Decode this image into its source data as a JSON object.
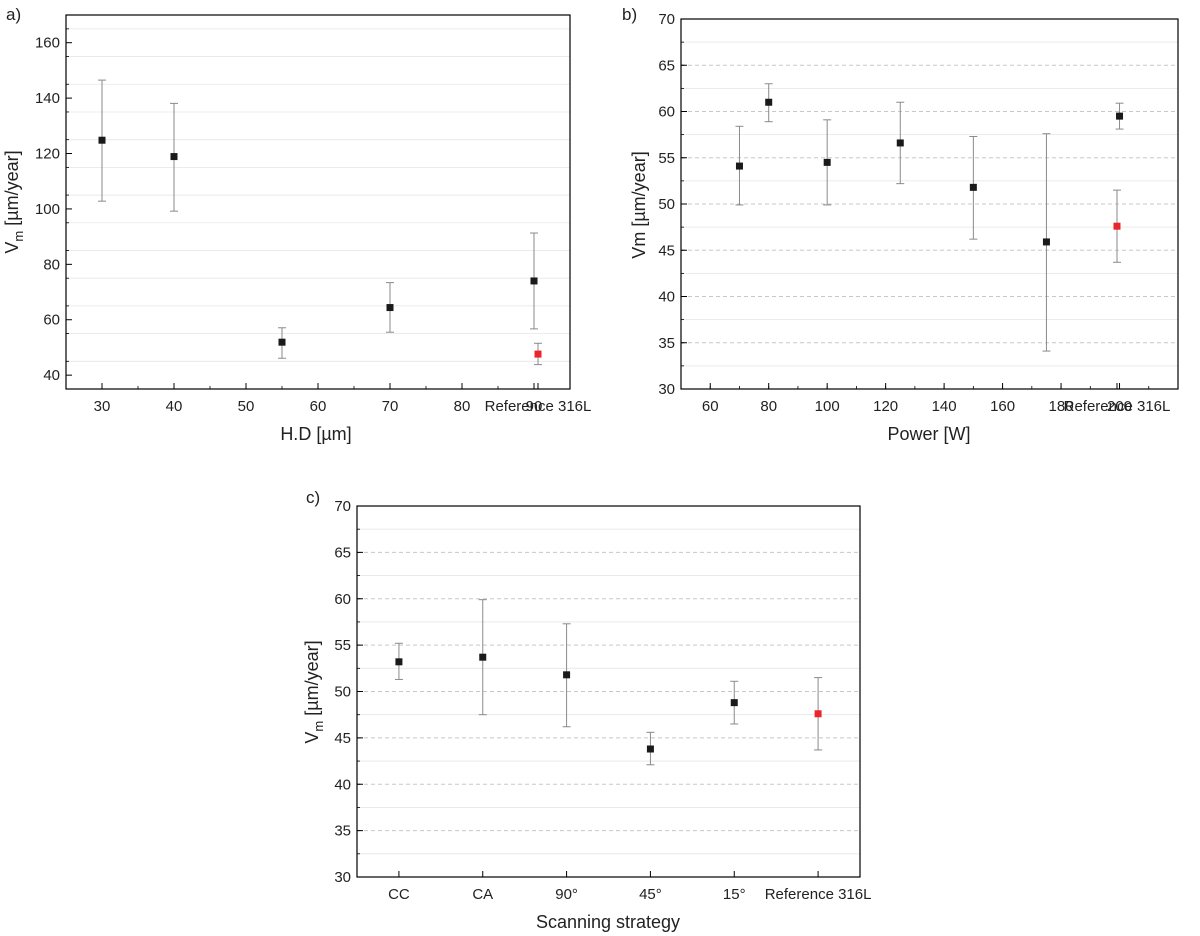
{
  "chart_data": [
    {
      "panel_label": "a)",
      "type": "scatter",
      "xlabel": "H.D [µm]",
      "ylabel_main": "V",
      "ylabel_sub": "m",
      "ylabel_rest": " [µm/year]",
      "xlim": [
        25,
        95
      ],
      "ylim": [
        35,
        170
      ],
      "xticks": [
        30,
        40,
        50,
        60,
        70,
        80,
        90
      ],
      "xtick_labels": [
        "30",
        "40",
        "50",
        "60",
        "70",
        "80",
        "90"
      ],
      "yticks": [
        40,
        60,
        80,
        100,
        120,
        140,
        160
      ],
      "ytick_labels": [
        "40",
        "60",
        "80",
        "100",
        "120",
        "140",
        "160"
      ],
      "grid": true,
      "extra_label": "Reference 316L",
      "points": [
        {
          "x": 30,
          "y": 124.8,
          "lo": 102.8,
          "hi": 146.5
        },
        {
          "x": 40,
          "y": 118.9,
          "lo": 99.2,
          "hi": 138.1
        },
        {
          "x": 55,
          "y": 51.9,
          "lo": 46.1,
          "hi": 57.1
        },
        {
          "x": 70,
          "y": 64.4,
          "lo": 55.5,
          "hi": 73.4
        },
        {
          "x": 90,
          "y": 74.0,
          "lo": 56.7,
          "hi": 91.3
        },
        {
          "x": "Reference 316L",
          "y": 47.6,
          "lo": 43.8,
          "hi": 51.5,
          "color": "#e8262c"
        }
      ]
    },
    {
      "panel_label": "b)",
      "type": "scatter",
      "xlabel": "Power [W]",
      "ylabel_main": "Vm [µm/year]",
      "xlim": [
        50,
        220
      ],
      "ylim": [
        30,
        70
      ],
      "xticks": [
        60,
        80,
        100,
        120,
        140,
        160,
        180,
        200
      ],
      "xtick_labels": [
        "60",
        "80",
        "100",
        "120",
        "140",
        "160",
        "180",
        "200"
      ],
      "yticks": [
        30,
        35,
        40,
        45,
        50,
        55,
        60,
        65,
        70
      ],
      "ytick_labels": [
        "30",
        "35",
        "40",
        "45",
        "50",
        "55",
        "60",
        "65",
        "70"
      ],
      "grid": true,
      "extra_label": "Reference 316L",
      "points": [
        {
          "x": 70,
          "y": 54.1,
          "lo": 49.9,
          "hi": 58.4
        },
        {
          "x": 80,
          "y": 61.0,
          "lo": 58.9,
          "hi": 63.0
        },
        {
          "x": 100,
          "y": 54.5,
          "lo": 49.9,
          "hi": 59.1
        },
        {
          "x": 125,
          "y": 56.6,
          "lo": 52.2,
          "hi": 61.0
        },
        {
          "x": 150,
          "y": 51.8,
          "lo": 46.2,
          "hi": 57.3
        },
        {
          "x": 175,
          "y": 45.9,
          "lo": 34.1,
          "hi": 57.6
        },
        {
          "x": 200,
          "y": 59.5,
          "lo": 58.1,
          "hi": 60.9
        },
        {
          "x": "Reference 316L",
          "y": 47.6,
          "lo": 43.7,
          "hi": 51.5,
          "color": "#e8262c"
        }
      ]
    },
    {
      "panel_label": "c)",
      "type": "scatter",
      "xlabel": "Scanning strategy",
      "ylabel_main": "V",
      "ylabel_sub": "m",
      "ylabel_rest": " [µm/year]",
      "categories": [
        "CC",
        "CA",
        "90°",
        "45°",
        "15°",
        "Reference 316L"
      ],
      "ylim": [
        30,
        70
      ],
      "yticks": [
        30,
        35,
        40,
        45,
        50,
        55,
        60,
        65,
        70
      ],
      "ytick_labels": [
        "30",
        "35",
        "40",
        "45",
        "50",
        "55",
        "60",
        "65",
        "70"
      ],
      "grid": true,
      "points": [
        {
          "x": "CC",
          "y": 53.2,
          "lo": 51.3,
          "hi": 55.2
        },
        {
          "x": "CA",
          "y": 53.7,
          "lo": 47.5,
          "hi": 59.9
        },
        {
          "x": "90°",
          "y": 51.8,
          "lo": 46.2,
          "hi": 57.3
        },
        {
          "x": "45°",
          "y": 43.8,
          "lo": 42.1,
          "hi": 45.6
        },
        {
          "x": "15°",
          "y": 48.8,
          "lo": 46.5,
          "hi": 51.1
        },
        {
          "x": "Reference 316L",
          "y": 47.6,
          "lo": 43.7,
          "hi": 51.5,
          "color": "#e8262c"
        }
      ]
    }
  ],
  "colors": {
    "marker": "#1a1a1a",
    "reference_marker": "#e8262c",
    "errorbar": "#8a8a8a",
    "grid": "#c8c8c8",
    "frame": "#000000"
  }
}
